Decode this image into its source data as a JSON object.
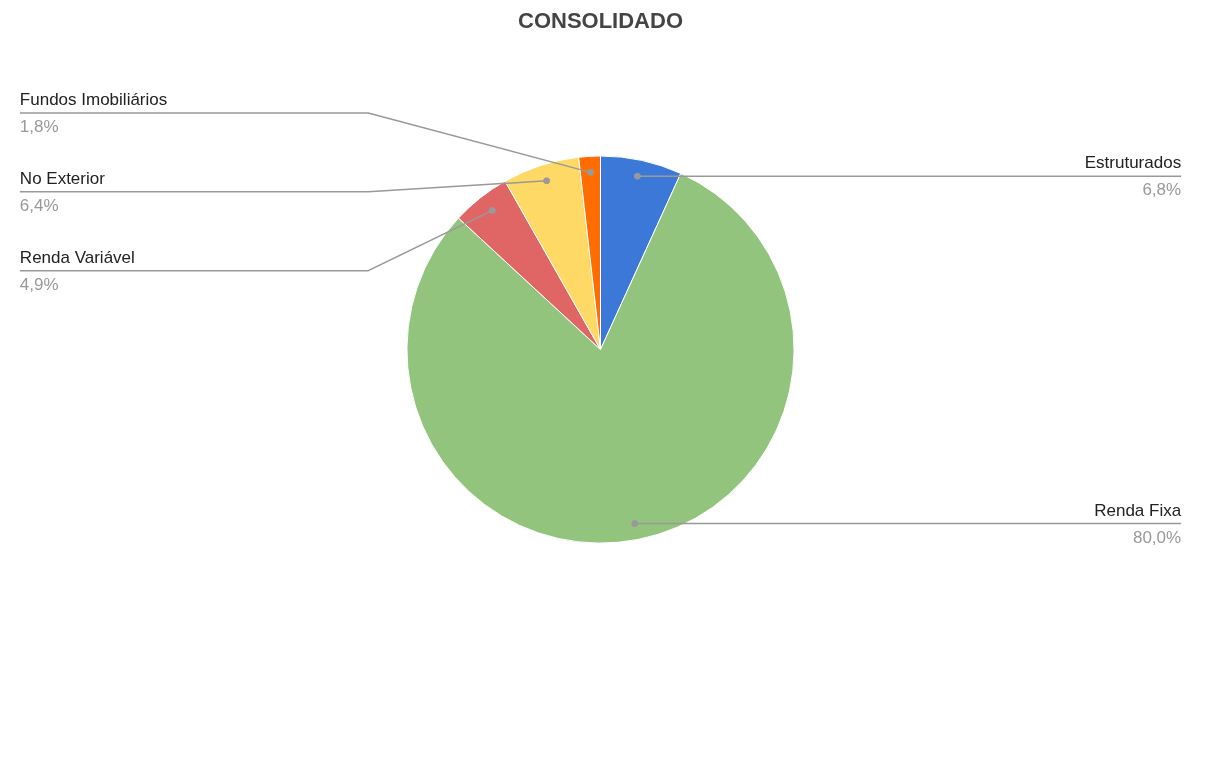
{
  "chart_data": {
    "type": "pie",
    "title": "CONSOLIDADO",
    "categories": [
      "Estruturados",
      "Renda Fixa",
      "Renda Variável",
      "No Exterior",
      "Fundos Imobiliários"
    ],
    "values": [
      6.8,
      80.0,
      4.9,
      6.4,
      1.8
    ],
    "value_labels": [
      "6,8%",
      "80,0%",
      "4,9%",
      "6,4%",
      "1,8%"
    ],
    "colors": [
      "#3c78d8",
      "#93c47d",
      "#e06666",
      "#ffd966",
      "#ff6d01"
    ]
  }
}
